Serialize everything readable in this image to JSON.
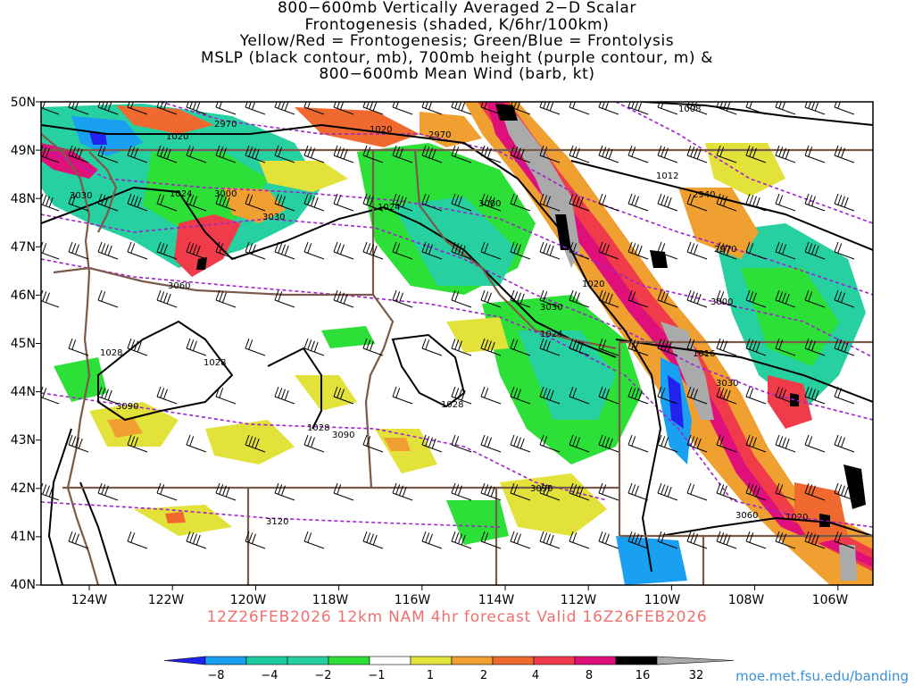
{
  "title": {
    "lines": [
      "800−600mb Vertically Averaged 2−D Scalar",
      "Frontogenesis (shaded, K/6hr/100km)",
      "Yellow/Red = Frontogenesis;  Green/Blue = Frontolysis",
      "MSLP (black contour, mb), 700mb height (purple contour, m) &",
      "800−600mb Mean Wind (barb, kt)"
    ]
  },
  "map": {
    "lat_labels": [
      "50N",
      "49N",
      "48N",
      "47N",
      "46N",
      "45N",
      "44N",
      "43N",
      "42N",
      "41N",
      "40N"
    ],
    "lon_labels": [
      "124W",
      "122W",
      "120W",
      "118W",
      "116W",
      "114W",
      "112W",
      "110W",
      "108W",
      "106W"
    ],
    "lat_range": [
      40,
      50
    ],
    "lon_range": [
      -125,
      -105
    ],
    "colors": {
      "border": "#7a5a48",
      "mslp": "#000000",
      "height": "#a020d0",
      "barb": "#000000"
    },
    "mslp_labels": [
      "1008",
      "1012",
      "1016",
      "1020",
      "1020",
      "1020",
      "1020",
      "1024",
      "1024",
      "1024",
      "1028",
      "1028",
      "1028",
      "1028"
    ],
    "height_labels": [
      "2940",
      "2970",
      "2970",
      "2970",
      "3000",
      "3000",
      "3000",
      "3030",
      "3030",
      "3030",
      "3030",
      "3060",
      "3060",
      "3090",
      "3090",
      "3090",
      "3120"
    ]
  },
  "valid_line": "12Z26FEB2026 12km NAM 4hr forecast Valid 16Z26FEB2026",
  "colorbar": {
    "labels": [
      "−8",
      "−4",
      "−2",
      "−1",
      "1",
      "2",
      "4",
      "8",
      "16",
      "32"
    ],
    "colors": [
      "#2222ee",
      "#1aa0f0",
      "#1ccda0",
      "#26d0a0",
      "#2ce038",
      "#ffffff",
      "#e2e23a",
      "#f0a030",
      "#f06a30",
      "#f03c4a",
      "#e0107a",
      "#000000",
      "#aaaaaa"
    ]
  },
  "credit": "moe.met.fsu.edu/banding"
}
